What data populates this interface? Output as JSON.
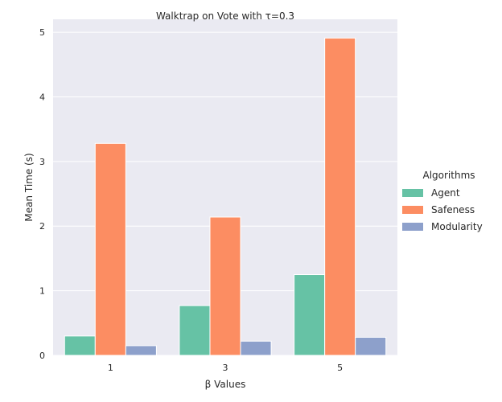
{
  "chart_data": {
    "type": "bar",
    "title": "Walktrap on Vote with τ=0.3",
    "xlabel": "β Values",
    "ylabel": "Mean Time (s)",
    "categories": [
      "1",
      "3",
      "5"
    ],
    "ylim": [
      0,
      5.2
    ],
    "yticks": [
      0,
      1,
      2,
      3,
      4,
      5
    ],
    "grid": true,
    "legend": {
      "title": "Algorithms",
      "position": "right"
    },
    "series": [
      {
        "name": "Agent",
        "color": "#66c2a5",
        "values": [
          0.3,
          0.77,
          1.25
        ]
      },
      {
        "name": "Safeness",
        "color": "#fc8d62",
        "values": [
          3.28,
          2.14,
          4.91
        ]
      },
      {
        "name": "Modularity",
        "color": "#8da0cb",
        "values": [
          0.15,
          0.22,
          0.28
        ]
      }
    ]
  }
}
